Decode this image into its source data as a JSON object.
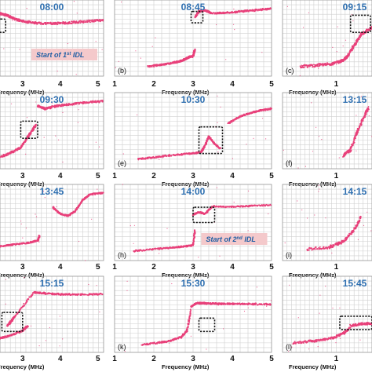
{
  "figure": {
    "xlabel": "Frequency (MHz)",
    "colors": {
      "trace": "#e8407a",
      "time": "#2e6fb0",
      "annotation_bg": "#f4c9cb",
      "annotation_text": "#1f5ea3"
    },
    "panels": [
      {
        "time": "08:00",
        "letter": "",
        "xticks": [
          "3",
          "4",
          "5"
        ],
        "annotation": {
          "text": "Start of 1",
          "sup": "st",
          "tail": " IDL"
        }
      },
      {
        "time": "08:45",
        "letter": "(b)",
        "xticks": [
          "1",
          "2",
          "3",
          "4",
          "5"
        ]
      },
      {
        "time": "09:15",
        "letter": "(c)",
        "xticks": [
          "1"
        ]
      },
      {
        "time": "09:30",
        "letter": "",
        "xticks": [
          "3",
          "4",
          "5"
        ]
      },
      {
        "time": "10:30",
        "letter": "(e)",
        "xticks": [
          "1",
          "2",
          "3",
          "4",
          "5"
        ]
      },
      {
        "time": "13:15",
        "letter": "(f)",
        "xticks": [
          "1"
        ]
      },
      {
        "time": "13:45",
        "letter": "",
        "xticks": [
          "3",
          "4",
          "5"
        ]
      },
      {
        "time": "14:00",
        "letter": "(h)",
        "xticks": [
          "1",
          "2",
          "3",
          "4",
          "5"
        ],
        "annotation": {
          "text": "Start of 2",
          "sup": "nd",
          "tail": " IDL"
        }
      },
      {
        "time": "14:15",
        "letter": "(i)",
        "xticks": [
          "1"
        ]
      },
      {
        "time": "15:15",
        "letter": "",
        "xticks": [
          "3",
          "4",
          "5"
        ]
      },
      {
        "time": "15:30",
        "letter": "(k)",
        "xticks": [
          "1",
          "2",
          "3",
          "4",
          "5"
        ]
      },
      {
        "time": "15:45",
        "letter": "(l)",
        "xticks": [
          "1"
        ]
      }
    ]
  },
  "chart_data": [
    {
      "type": "scatter",
      "panel": "08:00",
      "x": [
        2.0,
        2.5,
        3.0,
        3.5,
        4.0,
        4.5,
        5.0
      ],
      "y": [
        420,
        405,
        380,
        375,
        378,
        385,
        392
      ]
    },
    {
      "type": "scatter",
      "panel": "08:45",
      "x": [
        2.0,
        2.4,
        2.8,
        3.0,
        3.1,
        3.3,
        3.6,
        4.0,
        4.5,
        5.0
      ],
      "y": [
        160,
        175,
        195,
        230,
        420,
        440,
        425,
        430,
        440,
        450
      ]
    },
    {
      "type": "scatter",
      "panel": "09:30",
      "x": [
        2.0,
        2.6,
        3.0,
        3.2,
        3.6,
        4.0,
        4.5,
        5.0
      ],
      "y": [
        170,
        200,
        260,
        330,
        430,
        440,
        445,
        450
      ]
    },
    {
      "type": "scatter",
      "panel": "10:30",
      "x": [
        1.0,
        2.0,
        3.0,
        3.3,
        3.6,
        4.0,
        4.5,
        5.0
      ],
      "y": [
        150,
        165,
        185,
        260,
        215,
        340,
        390,
        420
      ]
    },
    {
      "type": "scatter",
      "panel": "13:45",
      "x": [
        2.0,
        2.5,
        3.0,
        3.5,
        4.0,
        4.3,
        4.6,
        5.0
      ],
      "y": [
        175,
        185,
        205,
        360,
        330,
        380,
        450,
        455
      ]
    },
    {
      "type": "scatter",
      "panel": "14:00",
      "x": [
        1.0,
        2.0,
        2.8,
        3.1,
        3.3,
        3.5,
        4.0,
        4.5,
        5.0
      ],
      "y": [
        155,
        165,
        175,
        360,
        345,
        380,
        375,
        380,
        385
      ]
    },
    {
      "type": "scatter",
      "panel": "15:15",
      "x": [
        2.0,
        2.5,
        3.0,
        3.3,
        3.6,
        4.0,
        4.5,
        5.0
      ],
      "y": [
        170,
        190,
        230,
        420,
        410,
        405,
        405,
        405
      ]
    },
    {
      "type": "scatter",
      "panel": "15:30",
      "x": [
        1.8,
        2.2,
        2.5,
        2.8,
        3.0,
        3.2,
        3.5,
        4.0,
        4.5,
        5.0
      ],
      "y": [
        140,
        150,
        160,
        200,
        340,
        360,
        360,
        358,
        356,
        355
      ]
    }
  ]
}
